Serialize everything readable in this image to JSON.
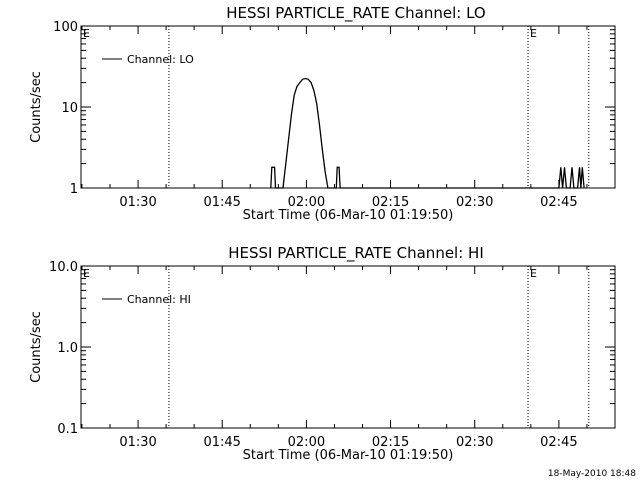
{
  "chart_data": [
    {
      "type": "line",
      "title": "HESSI PARTICLE_RATE Channel: LO",
      "xlabel": "Start Time (06-Mar-10 01:19:50)",
      "ylabel": "Counts/sec",
      "yscale": "log",
      "ylim": [
        1,
        100
      ],
      "xlim": [
        "01:19:50",
        "02:55:00"
      ],
      "x_ticks": [
        "01:30",
        "01:45",
        "02:00",
        "02:15",
        "02:30",
        "02:45"
      ],
      "y_ticks": [
        "1",
        "10",
        "100"
      ],
      "legend": {
        "label": "Channel: LO",
        "placement": "top-left"
      },
      "event_markers": [
        {
          "x": "01:35:30",
          "label": ""
        },
        {
          "x": "02:39:30",
          "label": "E"
        },
        {
          "x": "02:50:20",
          "label": ""
        }
      ],
      "axis_start_label": "E",
      "series": [
        {
          "name": "Channel: LO",
          "points": [
            [
              "01:53:40",
              1
            ],
            [
              "01:53:50",
              1.8
            ],
            [
              "01:54:20",
              1.8
            ],
            [
              "01:54:30",
              1
            ],
            [
              "01:55:50",
              1
            ],
            [
              "01:56:20",
              2
            ],
            [
              "01:56:50",
              4
            ],
            [
              "01:57:20",
              8
            ],
            [
              "01:57:50",
              14
            ],
            [
              "01:58:20",
              18
            ],
            [
              "01:58:50",
              20
            ],
            [
              "01:59:20",
              22
            ],
            [
              "01:59:50",
              22.5
            ],
            [
              "02:00:20",
              22
            ],
            [
              "02:00:50",
              20
            ],
            [
              "02:01:20",
              16
            ],
            [
              "02:01:50",
              11
            ],
            [
              "02:02:20",
              6
            ],
            [
              "02:02:50",
              3
            ],
            [
              "02:03:20",
              1.6
            ],
            [
              "02:03:50",
              1
            ],
            [
              "02:05:20",
              1
            ],
            [
              "02:05:30",
              1.8
            ],
            [
              "02:05:50",
              1.8
            ],
            [
              "02:06:00",
              1
            ],
            [
              "02:45:00",
              1
            ],
            [
              "02:45:20",
              1.8
            ],
            [
              "02:45:40",
              1
            ],
            [
              "02:46:00",
              1.8
            ],
            [
              "02:46:20",
              1
            ],
            [
              "02:47:00",
              1
            ],
            [
              "02:47:20",
              1.8
            ],
            [
              "02:47:40",
              1
            ],
            [
              "02:48:20",
              1
            ],
            [
              "02:48:40",
              1.8
            ],
            [
              "02:48:55",
              1
            ],
            [
              "02:49:10",
              1.8
            ],
            [
              "02:49:30",
              1
            ]
          ]
        }
      ]
    },
    {
      "type": "line",
      "title": "HESSI PARTICLE_RATE Channel: HI",
      "xlabel": "Start Time (06-Mar-10 01:19:50)",
      "ylabel": "Counts/sec",
      "yscale": "log",
      "ylim": [
        0.1,
        10
      ],
      "xlim": [
        "01:19:50",
        "02:55:00"
      ],
      "x_ticks": [
        "01:30",
        "01:45",
        "02:00",
        "02:15",
        "02:30",
        "02:45"
      ],
      "y_ticks": [
        "0.1",
        "1.0",
        "10.0"
      ],
      "legend": {
        "label": "Channel: HI",
        "placement": "top-left"
      },
      "event_markers": [
        {
          "x": "01:35:30",
          "label": ""
        },
        {
          "x": "02:39:30",
          "label": "E"
        },
        {
          "x": "02:50:20",
          "label": ""
        }
      ],
      "axis_start_label": "E",
      "series": [
        {
          "name": "Channel: HI",
          "points": []
        }
      ]
    }
  ],
  "footer": {
    "timestamp": "18-May-2010 18:48"
  }
}
